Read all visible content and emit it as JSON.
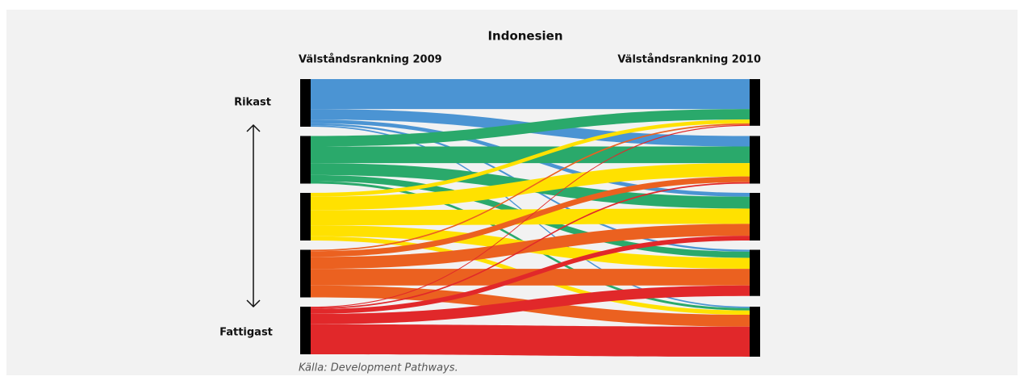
{
  "chart_data": {
    "type": "sankey",
    "title": "Indonesien",
    "left_label": "Välståndsrankning 2009",
    "right_label": "Välståndsrankning 2010",
    "top_label": "Rikast",
    "bottom_label": "Fattigast",
    "source": "Källa: Development Pathways.",
    "node_colors": [
      "#4b94d3",
      "#2aa96b",
      "#ffe100",
      "#eb6120",
      "#e1282a"
    ],
    "flows": [
      {
        "source": 0,
        "target": 0,
        "value": 63
      },
      {
        "source": 0,
        "target": 1,
        "value": 22
      },
      {
        "source": 0,
        "target": 2,
        "value": 8
      },
      {
        "source": 0,
        "target": 3,
        "value": 4
      },
      {
        "source": 0,
        "target": 4,
        "value": 3
      },
      {
        "source": 1,
        "target": 0,
        "value": 22
      },
      {
        "source": 1,
        "target": 1,
        "value": 35
      },
      {
        "source": 1,
        "target": 2,
        "value": 25
      },
      {
        "source": 1,
        "target": 3,
        "value": 13
      },
      {
        "source": 1,
        "target": 4,
        "value": 5
      },
      {
        "source": 2,
        "target": 0,
        "value": 8
      },
      {
        "source": 2,
        "target": 1,
        "value": 28
      },
      {
        "source": 2,
        "target": 2,
        "value": 32
      },
      {
        "source": 2,
        "target": 3,
        "value": 23
      },
      {
        "source": 2,
        "target": 4,
        "value": 9
      },
      {
        "source": 3,
        "target": 0,
        "value": 3
      },
      {
        "source": 3,
        "target": 1,
        "value": 12
      },
      {
        "source": 3,
        "target": 2,
        "value": 25
      },
      {
        "source": 3,
        "target": 3,
        "value": 35
      },
      {
        "source": 3,
        "target": 4,
        "value": 25
      },
      {
        "source": 4,
        "target": 0,
        "value": 2
      },
      {
        "source": 4,
        "target": 1,
        "value": 3
      },
      {
        "source": 4,
        "target": 2,
        "value": 10
      },
      {
        "source": 4,
        "target": 3,
        "value": 22
      },
      {
        "source": 4,
        "target": 4,
        "value": 63
      }
    ]
  }
}
